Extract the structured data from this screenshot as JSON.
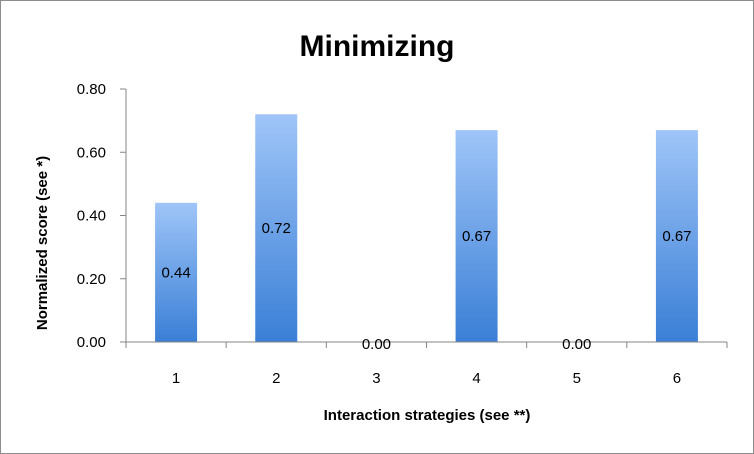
{
  "chart_data": {
    "type": "bar",
    "title": "Minimizing",
    "xlabel": "Interaction strategies (see **)",
    "ylabel": "Normalized score (see *)",
    "categories": [
      "1",
      "2",
      "3",
      "4",
      "5",
      "6"
    ],
    "values": [
      0.44,
      0.72,
      0.0,
      0.67,
      0.0,
      0.67
    ],
    "data_labels": [
      "0.44",
      "0.72",
      "0.00",
      "0.67",
      "0.00",
      "0.67"
    ],
    "y_ticks": [
      "0.00",
      "0.20",
      "0.40",
      "0.60",
      "0.80"
    ],
    "ylim": [
      0,
      0.8
    ],
    "grid": false,
    "legend": "none",
    "colors": {
      "bar_top": "#9fc5f8",
      "bar_bottom": "#3a7fd6",
      "axis": "#868686"
    }
  }
}
